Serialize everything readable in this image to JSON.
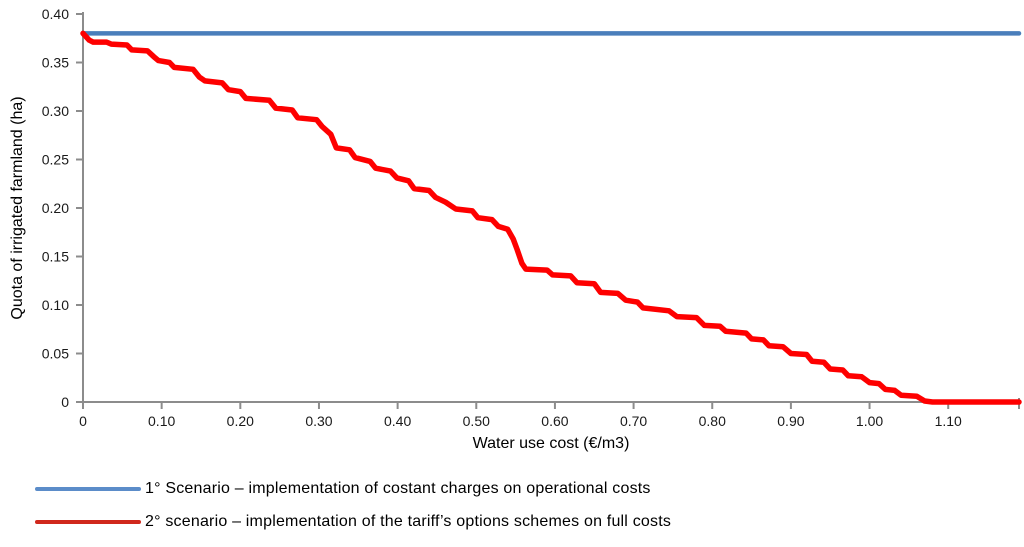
{
  "chart_data": {
    "type": "line",
    "title": "",
    "xlabel": "Water use cost (€/m3)",
    "ylabel": "Quota of irrigated farmland (ha)",
    "xlim": [
      0,
      1.19
    ],
    "ylim": [
      0,
      0.4
    ],
    "grid": false,
    "legend_position": "bottom-left",
    "axis_color": "#8c8c8c",
    "text_color": "#1a1a1a",
    "x_ticks": [
      {
        "v": 0.0,
        "label": "0"
      },
      {
        "v": 0.1,
        "label": "0.10"
      },
      {
        "v": 0.2,
        "label": "0.20"
      },
      {
        "v": 0.3,
        "label": "0.30"
      },
      {
        "v": 0.4,
        "label": "0.40"
      },
      {
        "v": 0.5,
        "label": "0.50"
      },
      {
        "v": 0.6,
        "label": "0.60"
      },
      {
        "v": 0.7,
        "label": "0.70"
      },
      {
        "v": 0.8,
        "label": "0.80"
      },
      {
        "v": 0.9,
        "label": "0.90"
      },
      {
        "v": 1.0,
        "label": "1.00"
      },
      {
        "v": 1.1,
        "label": "1.10"
      }
    ],
    "y_ticks": [
      {
        "v": 0.0,
        "label": "0"
      },
      {
        "v": 0.05,
        "label": "0.05"
      },
      {
        "v": 0.1,
        "label": "0.10"
      },
      {
        "v": 0.15,
        "label": "0.15"
      },
      {
        "v": 0.2,
        "label": "0.20"
      },
      {
        "v": 0.25,
        "label": "0.25"
      },
      {
        "v": 0.3,
        "label": "0.30"
      },
      {
        "v": 0.35,
        "label": "0.35"
      },
      {
        "v": 0.4,
        "label": "0.40"
      }
    ],
    "series": [
      {
        "name": "1° Scenario – implementation of costant charges on operational costs",
        "color": "#4a7ebb",
        "legend_color": "#5b8cc9",
        "width": 4.5,
        "points": [
          [
            0.0,
            0.38
          ],
          [
            1.19,
            0.38
          ]
        ]
      },
      {
        "name": "2° scenario – implementation of the tariff’s options schemes on full costs",
        "color": "#fe0000",
        "legend_color": "#d0281c",
        "width": 5.5,
        "points": [
          [
            0.0,
            0.38
          ],
          [
            0.008,
            0.373
          ],
          [
            0.013,
            0.371
          ],
          [
            0.03,
            0.371
          ],
          [
            0.036,
            0.369
          ],
          [
            0.056,
            0.368
          ],
          [
            0.062,
            0.363
          ],
          [
            0.082,
            0.362
          ],
          [
            0.09,
            0.356
          ],
          [
            0.096,
            0.352
          ],
          [
            0.11,
            0.35
          ],
          [
            0.116,
            0.345
          ],
          [
            0.14,
            0.343
          ],
          [
            0.148,
            0.335
          ],
          [
            0.155,
            0.331
          ],
          [
            0.177,
            0.329
          ],
          [
            0.185,
            0.322
          ],
          [
            0.2,
            0.32
          ],
          [
            0.207,
            0.313
          ],
          [
            0.237,
            0.311
          ],
          [
            0.245,
            0.303
          ],
          [
            0.266,
            0.301
          ],
          [
            0.273,
            0.293
          ],
          [
            0.297,
            0.291
          ],
          [
            0.304,
            0.284
          ],
          [
            0.315,
            0.276
          ],
          [
            0.322,
            0.262
          ],
          [
            0.339,
            0.26
          ],
          [
            0.346,
            0.252
          ],
          [
            0.365,
            0.248
          ],
          [
            0.372,
            0.241
          ],
          [
            0.391,
            0.238
          ],
          [
            0.399,
            0.231
          ],
          [
            0.414,
            0.228
          ],
          [
            0.421,
            0.22
          ],
          [
            0.44,
            0.218
          ],
          [
            0.448,
            0.211
          ],
          [
            0.461,
            0.206
          ],
          [
            0.474,
            0.199
          ],
          [
            0.495,
            0.197
          ],
          [
            0.502,
            0.19
          ],
          [
            0.52,
            0.188
          ],
          [
            0.528,
            0.181
          ],
          [
            0.54,
            0.178
          ],
          [
            0.547,
            0.168
          ],
          [
            0.552,
            0.157
          ],
          [
            0.558,
            0.143
          ],
          [
            0.563,
            0.137
          ],
          [
            0.59,
            0.136
          ],
          [
            0.597,
            0.131
          ],
          [
            0.62,
            0.13
          ],
          [
            0.628,
            0.123
          ],
          [
            0.65,
            0.122
          ],
          [
            0.658,
            0.113
          ],
          [
            0.68,
            0.112
          ],
          [
            0.69,
            0.105
          ],
          [
            0.705,
            0.103
          ],
          [
            0.712,
            0.097
          ],
          [
            0.745,
            0.094
          ],
          [
            0.755,
            0.088
          ],
          [
            0.78,
            0.087
          ],
          [
            0.79,
            0.079
          ],
          [
            0.81,
            0.078
          ],
          [
            0.817,
            0.073
          ],
          [
            0.843,
            0.071
          ],
          [
            0.85,
            0.065
          ],
          [
            0.865,
            0.064
          ],
          [
            0.872,
            0.058
          ],
          [
            0.89,
            0.057
          ],
          [
            0.9,
            0.05
          ],
          [
            0.92,
            0.049
          ],
          [
            0.927,
            0.042
          ],
          [
            0.942,
            0.041
          ],
          [
            0.95,
            0.034
          ],
          [
            0.966,
            0.033
          ],
          [
            0.973,
            0.027
          ],
          [
            0.99,
            0.026
          ],
          [
            1.0,
            0.02
          ],
          [
            1.012,
            0.019
          ],
          [
            1.02,
            0.013
          ],
          [
            1.032,
            0.012
          ],
          [
            1.04,
            0.007
          ],
          [
            1.06,
            0.006
          ],
          [
            1.07,
            0.001
          ],
          [
            1.08,
            0.0
          ],
          [
            1.19,
            0.0
          ]
        ]
      }
    ]
  }
}
